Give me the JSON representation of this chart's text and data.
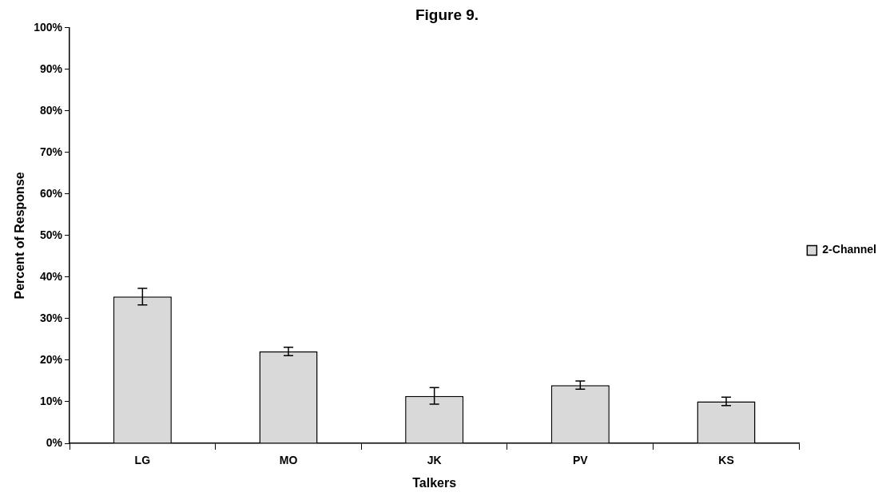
{
  "chart_data": {
    "type": "bar",
    "title": "Figure 9.",
    "xlabel": "Talkers",
    "ylabel": "Percent of Response",
    "categories": [
      "LG",
      "MO",
      "JK",
      "PV",
      "KS"
    ],
    "series": [
      {
        "name": "2-Channel",
        "color": "#d9d9d9",
        "values": [
          35.3,
          22.1,
          11.4,
          14.0,
          10.1
        ],
        "errors": [
          2.0,
          1.0,
          2.0,
          1.0,
          1.0
        ]
      }
    ],
    "ylim": [
      0,
      100
    ],
    "yticks": [
      {
        "value": 0,
        "label": "0%"
      },
      {
        "value": 10,
        "label": "10%"
      },
      {
        "value": 20,
        "label": "20%"
      },
      {
        "value": 30,
        "label": "30%"
      },
      {
        "value": 40,
        "label": "40%"
      },
      {
        "value": 50,
        "label": "50%"
      },
      {
        "value": 60,
        "label": "60%"
      },
      {
        "value": 70,
        "label": "70%"
      },
      {
        "value": 80,
        "label": "80%"
      },
      {
        "value": 90,
        "label": "90%"
      },
      {
        "value": 100,
        "label": "100%"
      }
    ],
    "grid": false,
    "legend": "right"
  }
}
